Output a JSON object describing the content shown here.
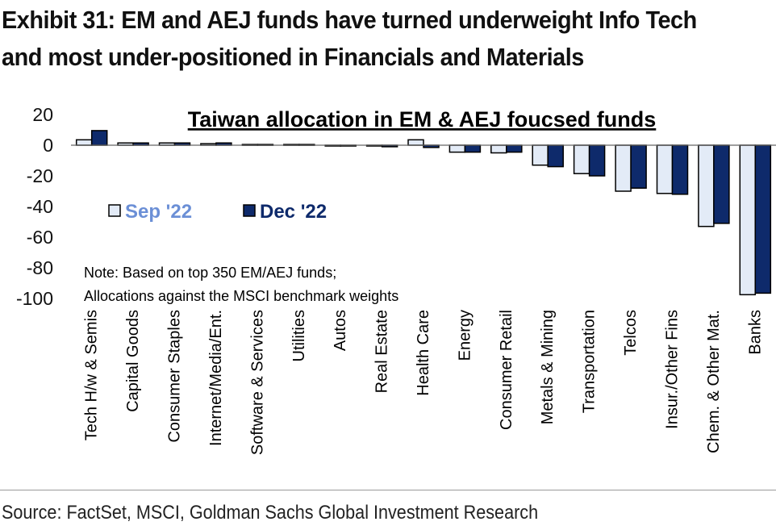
{
  "exhibit": {
    "title_line1": "Exhibit 31: EM and AEJ funds have turned underweight Info Tech",
    "title_line2": "and most under-positioned in Financials and Materials",
    "source": "Source: FactSet, MSCI, Goldman Sachs Global Investment Research"
  },
  "chart_data": {
    "type": "bar",
    "title": "Taiwan allocation in EM & AEJ foucsed funds",
    "note_line1": "Note: Based on top 350 EM/AEJ funds;",
    "note_line2": "Allocations against the MSCI benchmark weights",
    "xlabel": "",
    "ylabel": "",
    "ylim": [
      -100,
      20
    ],
    "yticks": [
      20,
      0,
      -20,
      -40,
      -60,
      -80,
      -100
    ],
    "legend_position": "left",
    "categories": [
      "Tech H/w & Semis",
      "Capital Goods",
      "Consumer Staples",
      "Internet/Media/Ent.",
      "Software & Services",
      "Utilities",
      "Autos",
      "Real Estate",
      "Health Care",
      "Energy",
      "Consumer Retail",
      "Metals & Mining",
      "Transportation",
      "Telcos",
      "Insur./Other Fins",
      "Chem. & Other Mat.",
      "Banks"
    ],
    "series": [
      {
        "name": "Sep '22",
        "color": "#e3ebf7",
        "label_color": "#6b8fd6",
        "values": [
          3.5,
          1.5,
          1.5,
          1.0,
          0.5,
          0.5,
          -0.5,
          -0.5,
          3.5,
          -4.5,
          -5.0,
          -13.0,
          -18.5,
          -30.0,
          -31.5,
          -53.0,
          -97.5
        ]
      },
      {
        "name": "Dec '22",
        "color": "#0e2a6b",
        "label_color": "#0e2a6b",
        "values": [
          9.5,
          1.5,
          1.5,
          1.5,
          0.5,
          0.5,
          -0.5,
          -1.0,
          -1.5,
          -4.5,
          -4.5,
          -14.0,
          -20.0,
          -28.0,
          -32.0,
          -51.0,
          -96.5
        ]
      }
    ],
    "grid": false
  }
}
